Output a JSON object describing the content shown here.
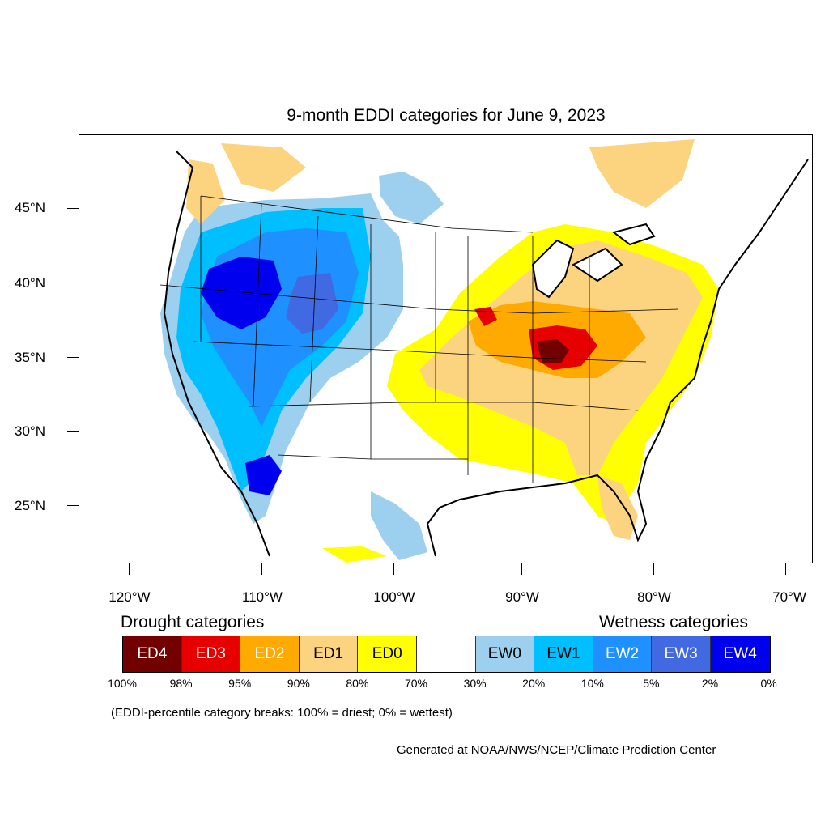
{
  "title": "9-month EDDI categories for June 9, 2023",
  "axes": {
    "latitudes": [
      "45°N",
      "40°N",
      "35°N",
      "30°N",
      "25°N"
    ],
    "longitudes": [
      "120°W",
      "110°W",
      "100°W",
      "90°W",
      "80°W",
      "70°W"
    ]
  },
  "legend": {
    "drought_heading": "Drought categories",
    "wetness_heading": "Wetness categories",
    "categories": [
      {
        "label": "ED4",
        "color": "#730000",
        "text_color": "#ffffff"
      },
      {
        "label": "ED3",
        "color": "#e60000",
        "text_color": "#ffffff"
      },
      {
        "label": "ED2",
        "color": "#ffaa00",
        "text_color": "#ffffff"
      },
      {
        "label": "ED1",
        "color": "#fcd37f",
        "text_color": "#000000"
      },
      {
        "label": "ED0",
        "color": "#ffff00",
        "text_color": "#000000"
      },
      {
        "label": "",
        "color": "#ffffff",
        "text_color": "#000000"
      },
      {
        "label": "EW0",
        "color": "#9dcfef",
        "text_color": "#000000"
      },
      {
        "label": "EW1",
        "color": "#00bfff",
        "text_color": "#000000"
      },
      {
        "label": "EW2",
        "color": "#1e90ff",
        "text_color": "#ffffff"
      },
      {
        "label": "EW3",
        "color": "#4169e1",
        "text_color": "#ffffff"
      },
      {
        "label": "EW4",
        "color": "#0000ee",
        "text_color": "#ffffff"
      }
    ],
    "percentiles": [
      "100%",
      "98%",
      "95%",
      "90%",
      "80%",
      "70%",
      "30%",
      "20%",
      "10%",
      "5%",
      "2%",
      "0%"
    ]
  },
  "note": "(EDDI-percentile category breaks: 100% = driest; 0% = wettest)",
  "credit": "Generated at NOAA/NWS/NCEP/Climate Prediction Center"
}
